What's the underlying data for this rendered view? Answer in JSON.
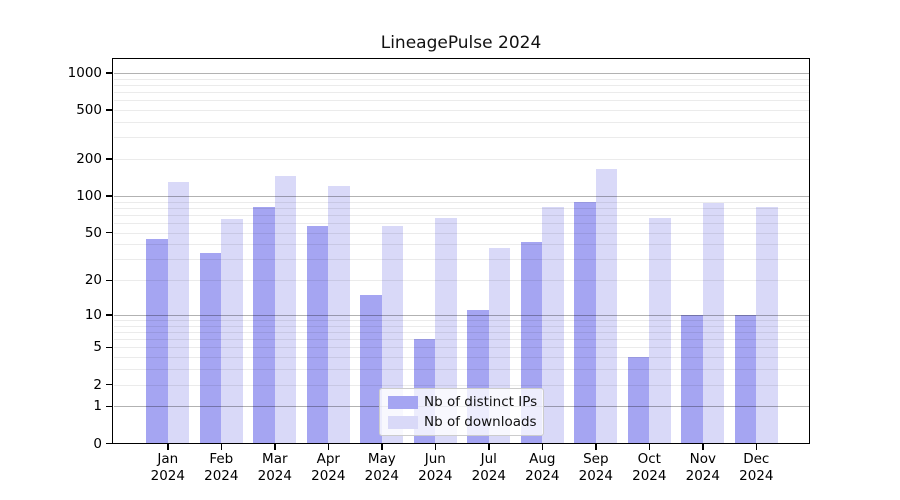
{
  "title": "LineagePulse 2024",
  "legend": {
    "items": [
      {
        "label": "Nb of distinct IPs",
        "color": "#a5a5f2"
      },
      {
        "label": "Nb of downloads",
        "color": "#d9d9f8"
      }
    ]
  },
  "chart_data": {
    "type": "bar",
    "title": "LineagePulse 2024",
    "categories": [
      "Jan 2024",
      "Feb 2024",
      "Mar 2024",
      "Apr 2024",
      "May 2024",
      "Jun 2024",
      "Jul 2024",
      "Aug 2024",
      "Sep 2024",
      "Oct 2024",
      "Nov 2024",
      "Dec 2024"
    ],
    "series": [
      {
        "name": "Nb of distinct IPs",
        "color": "#a5a5f2",
        "values": [
          44,
          34,
          81,
          57,
          15,
          6,
          11,
          42,
          89,
          4,
          10,
          10
        ]
      },
      {
        "name": "Nb of downloads",
        "color": "#d9d9f8",
        "values": [
          130,
          65,
          147,
          121,
          57,
          66,
          37,
          82,
          166,
          66,
          88,
          82
        ]
      }
    ],
    "yscale": "log(1+x)",
    "yticks": [
      0,
      1,
      2,
      5,
      10,
      20,
      50,
      100,
      200,
      500,
      1000
    ],
    "ylim": [
      0,
      1300
    ],
    "grid": "on",
    "gridline_major_at": [
      1,
      10,
      100,
      1000
    ],
    "legend_position": "lower center"
  }
}
